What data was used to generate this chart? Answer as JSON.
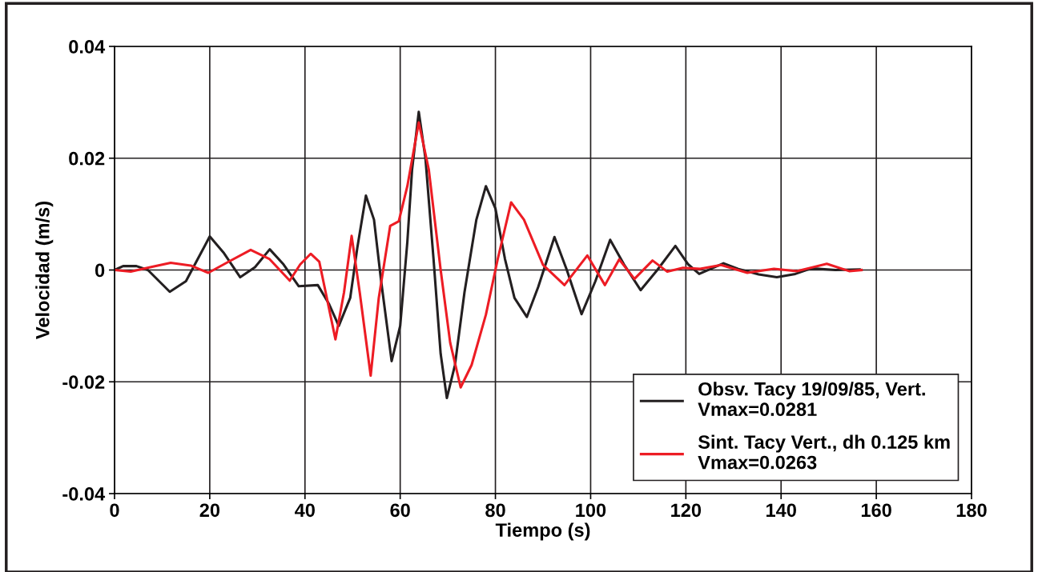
{
  "chart_data": {
    "type": "line",
    "xlabel": "Tiempo (s)",
    "ylabel": "Velocidad (m/s)",
    "xlim": [
      0,
      180
    ],
    "xticks": [
      0,
      20,
      40,
      60,
      80,
      100,
      120,
      140,
      160,
      180
    ],
    "ylim": [
      -0.04,
      0.04
    ],
    "yticks": [
      -0.04,
      -0.02,
      0,
      0.02,
      0.04
    ],
    "grid": true,
    "legend": "bottom right",
    "marker": "none",
    "line_style": "solid",
    "series": [
      {
        "name": "Obsv. Tacy 19/09/85, Vert.\nVmax=0.0281",
        "color": "#231f20",
        "x": [
          0,
          1.8,
          4.6,
          7,
          11.6,
          15,
          17.5,
          20,
          23,
          26.4,
          29.5,
          32.6,
          35.5,
          38.7,
          42.7,
          45,
          47.1,
          49.5,
          51,
          52.8,
          54.5,
          56,
          58.2,
          60,
          61.5,
          62.5,
          63.9,
          65.3,
          67,
          68.5,
          69.8,
          71.5,
          73.5,
          76,
          78,
          80,
          82,
          84,
          86.6,
          89,
          92.4,
          95,
          98.1,
          101,
          104.1,
          107,
          110.5,
          114,
          117.8,
          120.5,
          122.8,
          127.9,
          131,
          135.3,
          139.1,
          143,
          146.4,
          151.4,
          156.5
        ],
        "values": [
          0,
          0.0007,
          0.0007,
          0,
          -0.0039,
          -0.002,
          0.002,
          0.006,
          0.003,
          -0.0013,
          0.0005,
          0.0037,
          0.001,
          -0.0029,
          -0.0027,
          -0.006,
          -0.01,
          -0.005,
          0.004,
          0.0133,
          0.009,
          -0.002,
          -0.0163,
          -0.01,
          0.005,
          0.018,
          0.0283,
          0.02,
          0.002,
          -0.015,
          -0.0229,
          -0.017,
          -0.004,
          0.009,
          0.015,
          0.011,
          0.002,
          -0.005,
          -0.0084,
          -0.003,
          0.0059,
          0,
          -0.0079,
          -0.002,
          0.0054,
          0.001,
          -0.0036,
          0,
          0.0043,
          0.001,
          -0.0007,
          0.0012,
          0.0002,
          -0.0008,
          -0.0013,
          -0.0007,
          0.0003,
          0,
          0.0001
        ]
      },
      {
        "name": "Sint. Tacy Vert., dh 0.125 km\nVmax=0.0263",
        "color": "#ed1c24",
        "x": [
          0,
          3.4,
          7.5,
          11.8,
          16,
          19.7,
          24,
          28.6,
          32.5,
          36.8,
          39,
          41.2,
          43,
          46.4,
          48.2,
          49.8,
          51.5,
          53.8,
          55.5,
          57.9,
          59.7,
          61.5,
          63.9,
          66,
          68.5,
          70.5,
          72.7,
          75,
          78,
          80.5,
          83.3,
          86,
          90,
          94.5,
          99.3,
          103,
          106,
          109.2,
          113,
          116.1,
          119.4,
          123,
          127.4,
          132.9,
          138.5,
          143.3,
          149.6,
          154.3,
          156.9
        ],
        "values": [
          0,
          -0.0003,
          0.0005,
          0.0013,
          0.0008,
          -0.0005,
          0.0015,
          0.0036,
          0.002,
          -0.0019,
          0.001,
          0.0029,
          0.0015,
          -0.0124,
          -0.004,
          0.0061,
          -0.004,
          -0.0189,
          -0.005,
          0.0079,
          0.0087,
          0.015,
          0.0264,
          0.018,
          0,
          -0.013,
          -0.021,
          -0.017,
          -0.008,
          0.002,
          0.0121,
          0.009,
          0.0009,
          -0.0027,
          0.0026,
          -0.0027,
          0.0019,
          -0.0016,
          0.0017,
          -0.0003,
          0.0004,
          0.0002,
          0.0009,
          -0.0005,
          0.0002,
          -0.0002,
          0.0011,
          -0.0002,
          0
        ]
      }
    ]
  }
}
